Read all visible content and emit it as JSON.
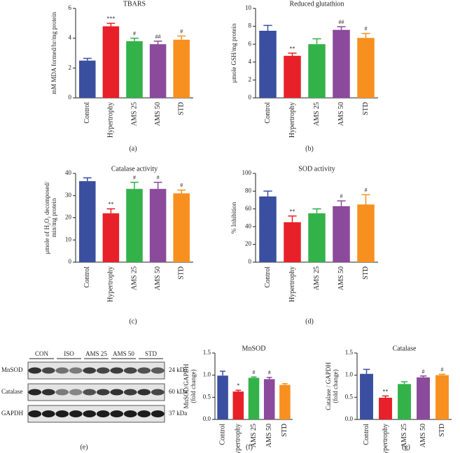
{
  "chart_data": [
    {
      "type": "bar",
      "title": "TBARS",
      "y_label": "mM MDA formed/hr/mg protein",
      "categories": [
        "Control",
        "Hypertrophy",
        "AMS 25",
        "AMS 50",
        "STD"
      ],
      "values": [
        2.5,
        4.8,
        3.8,
        3.6,
        3.9
      ],
      "errors": [
        0.15,
        0.2,
        0.2,
        0.2,
        0.25
      ],
      "significance": [
        null,
        "***",
        "#",
        "##",
        "#"
      ],
      "colors": [
        "#3a4fa0",
        "#e8202a",
        "#33b24a",
        "#8b4a9c",
        "#f7901e"
      ],
      "ylim": [
        0,
        6
      ],
      "yticks": [
        0,
        2,
        4,
        6
      ]
    },
    {
      "type": "bar",
      "title": "Reduced glutathion",
      "y_label": "μmole GSH/mg protein",
      "categories": [
        "Control",
        "Hypertrophy",
        "AMS 25",
        "AMS 50",
        "STD"
      ],
      "values": [
        7.5,
        4.7,
        6.0,
        7.6,
        6.7
      ],
      "errors": [
        0.6,
        0.3,
        0.6,
        0.35,
        0.5
      ],
      "significance": [
        null,
        "**",
        null,
        "##",
        "#"
      ],
      "colors": [
        "#3a4fa0",
        "#e8202a",
        "#33b24a",
        "#8b4a9c",
        "#f7901e"
      ],
      "ylim": [
        0,
        10
      ],
      "yticks": [
        0,
        2,
        4,
        6,
        8,
        10
      ]
    },
    {
      "type": "bar",
      "title": "Catalase activity",
      "y_label": [
        "μmole of H₂O₂ decomposed/",
        "min/mg protein"
      ],
      "categories": [
        "Control",
        "Hypertrophy",
        "AMS 25",
        "AMS 50",
        "STD"
      ],
      "values": [
        36.5,
        22,
        33,
        33,
        31
      ],
      "errors": [
        1.5,
        2,
        3,
        3,
        1.5
      ],
      "significance": [
        null,
        "**",
        "#",
        "#",
        "#"
      ],
      "colors": [
        "#3a4fa0",
        "#e8202a",
        "#33b24a",
        "#8b4a9c",
        "#f7901e"
      ],
      "ylim": [
        0,
        40
      ],
      "yticks": [
        0,
        10,
        20,
        30,
        40
      ]
    },
    {
      "type": "bar",
      "title": "SOD activity",
      "y_label": "% Inhibition",
      "categories": [
        "Control",
        "Hypertrophy",
        "AMS 25",
        "AMS 50",
        "STD"
      ],
      "values": [
        74,
        45,
        55,
        63,
        65
      ],
      "errors": [
        6,
        7,
        5,
        6,
        11
      ],
      "significance": [
        null,
        "**",
        null,
        "#",
        "#"
      ],
      "colors": [
        "#3a4fa0",
        "#e8202a",
        "#33b24a",
        "#8b4a9c",
        "#f7901e"
      ],
      "ylim": [
        0,
        100
      ],
      "yticks": [
        0,
        20,
        40,
        60,
        80,
        100
      ]
    },
    {
      "type": "bar",
      "title": "MnSOD",
      "y_label": [
        "MnSOD/GAPDH",
        "(fold change)"
      ],
      "categories": [
        "Control",
        "Hypertrophy",
        "AMS 25",
        "AMS 50",
        "STD"
      ],
      "values": [
        0.99,
        0.63,
        0.94,
        0.91,
        0.78
      ],
      "errors": [
        0.1,
        0.03,
        0.02,
        0.04,
        0.03
      ],
      "significance": [
        null,
        "*",
        "#",
        "#",
        null
      ],
      "colors": [
        "#3a4fa0",
        "#e8202a",
        "#33b24a",
        "#8b4a9c",
        "#f7901e"
      ],
      "ylim": [
        0,
        1.5
      ],
      "yticks": [
        {
          "value": 0,
          "label": "0.0"
        },
        {
          "value": 0.5,
          "label": "0.5"
        },
        {
          "value": 1,
          "label": "1.0"
        },
        {
          "value": 1.5,
          "label": "1.5"
        }
      ]
    },
    {
      "type": "bar",
      "title": "Catalase",
      "y_label": [
        "Catalase / GAPDH",
        "(fold change)"
      ],
      "categories": [
        "Control",
        "Hypertrophy",
        "AMS 25",
        "AMS 50",
        "STD"
      ],
      "values": [
        1.03,
        0.49,
        0.8,
        0.95,
        1.0
      ],
      "errors": [
        0.1,
        0.04,
        0.05,
        0.03,
        0.02
      ],
      "significance": [
        null,
        "**",
        null,
        "#",
        "#"
      ],
      "colors": [
        "#3a4fa0",
        "#e8202a",
        "#33b24a",
        "#8b4a9c",
        "#f7901e"
      ],
      "ylim": [
        0,
        1.5
      ],
      "yticks": [
        {
          "value": 0,
          "label": "0.0"
        },
        {
          "value": 0.5,
          "label": "0.5"
        },
        {
          "value": 1,
          "label": "1.0"
        },
        {
          "value": 1.5,
          "label": "1.5"
        }
      ]
    }
  ],
  "blot": {
    "groups": [
      "CON",
      "ISO",
      "AMS 25",
      "AMS 50",
      "STD"
    ],
    "rows": [
      {
        "protein": "MnSOD",
        "size": "24 kDa"
      },
      {
        "protein": "Catalase",
        "size": "60 kDa"
      },
      {
        "protein": "GAPDH",
        "size": "37 kDa"
      }
    ]
  },
  "panel_labels": [
    "(a)",
    "(b)",
    "(c)",
    "(d)",
    "(e)",
    "(f)",
    "(g)"
  ]
}
